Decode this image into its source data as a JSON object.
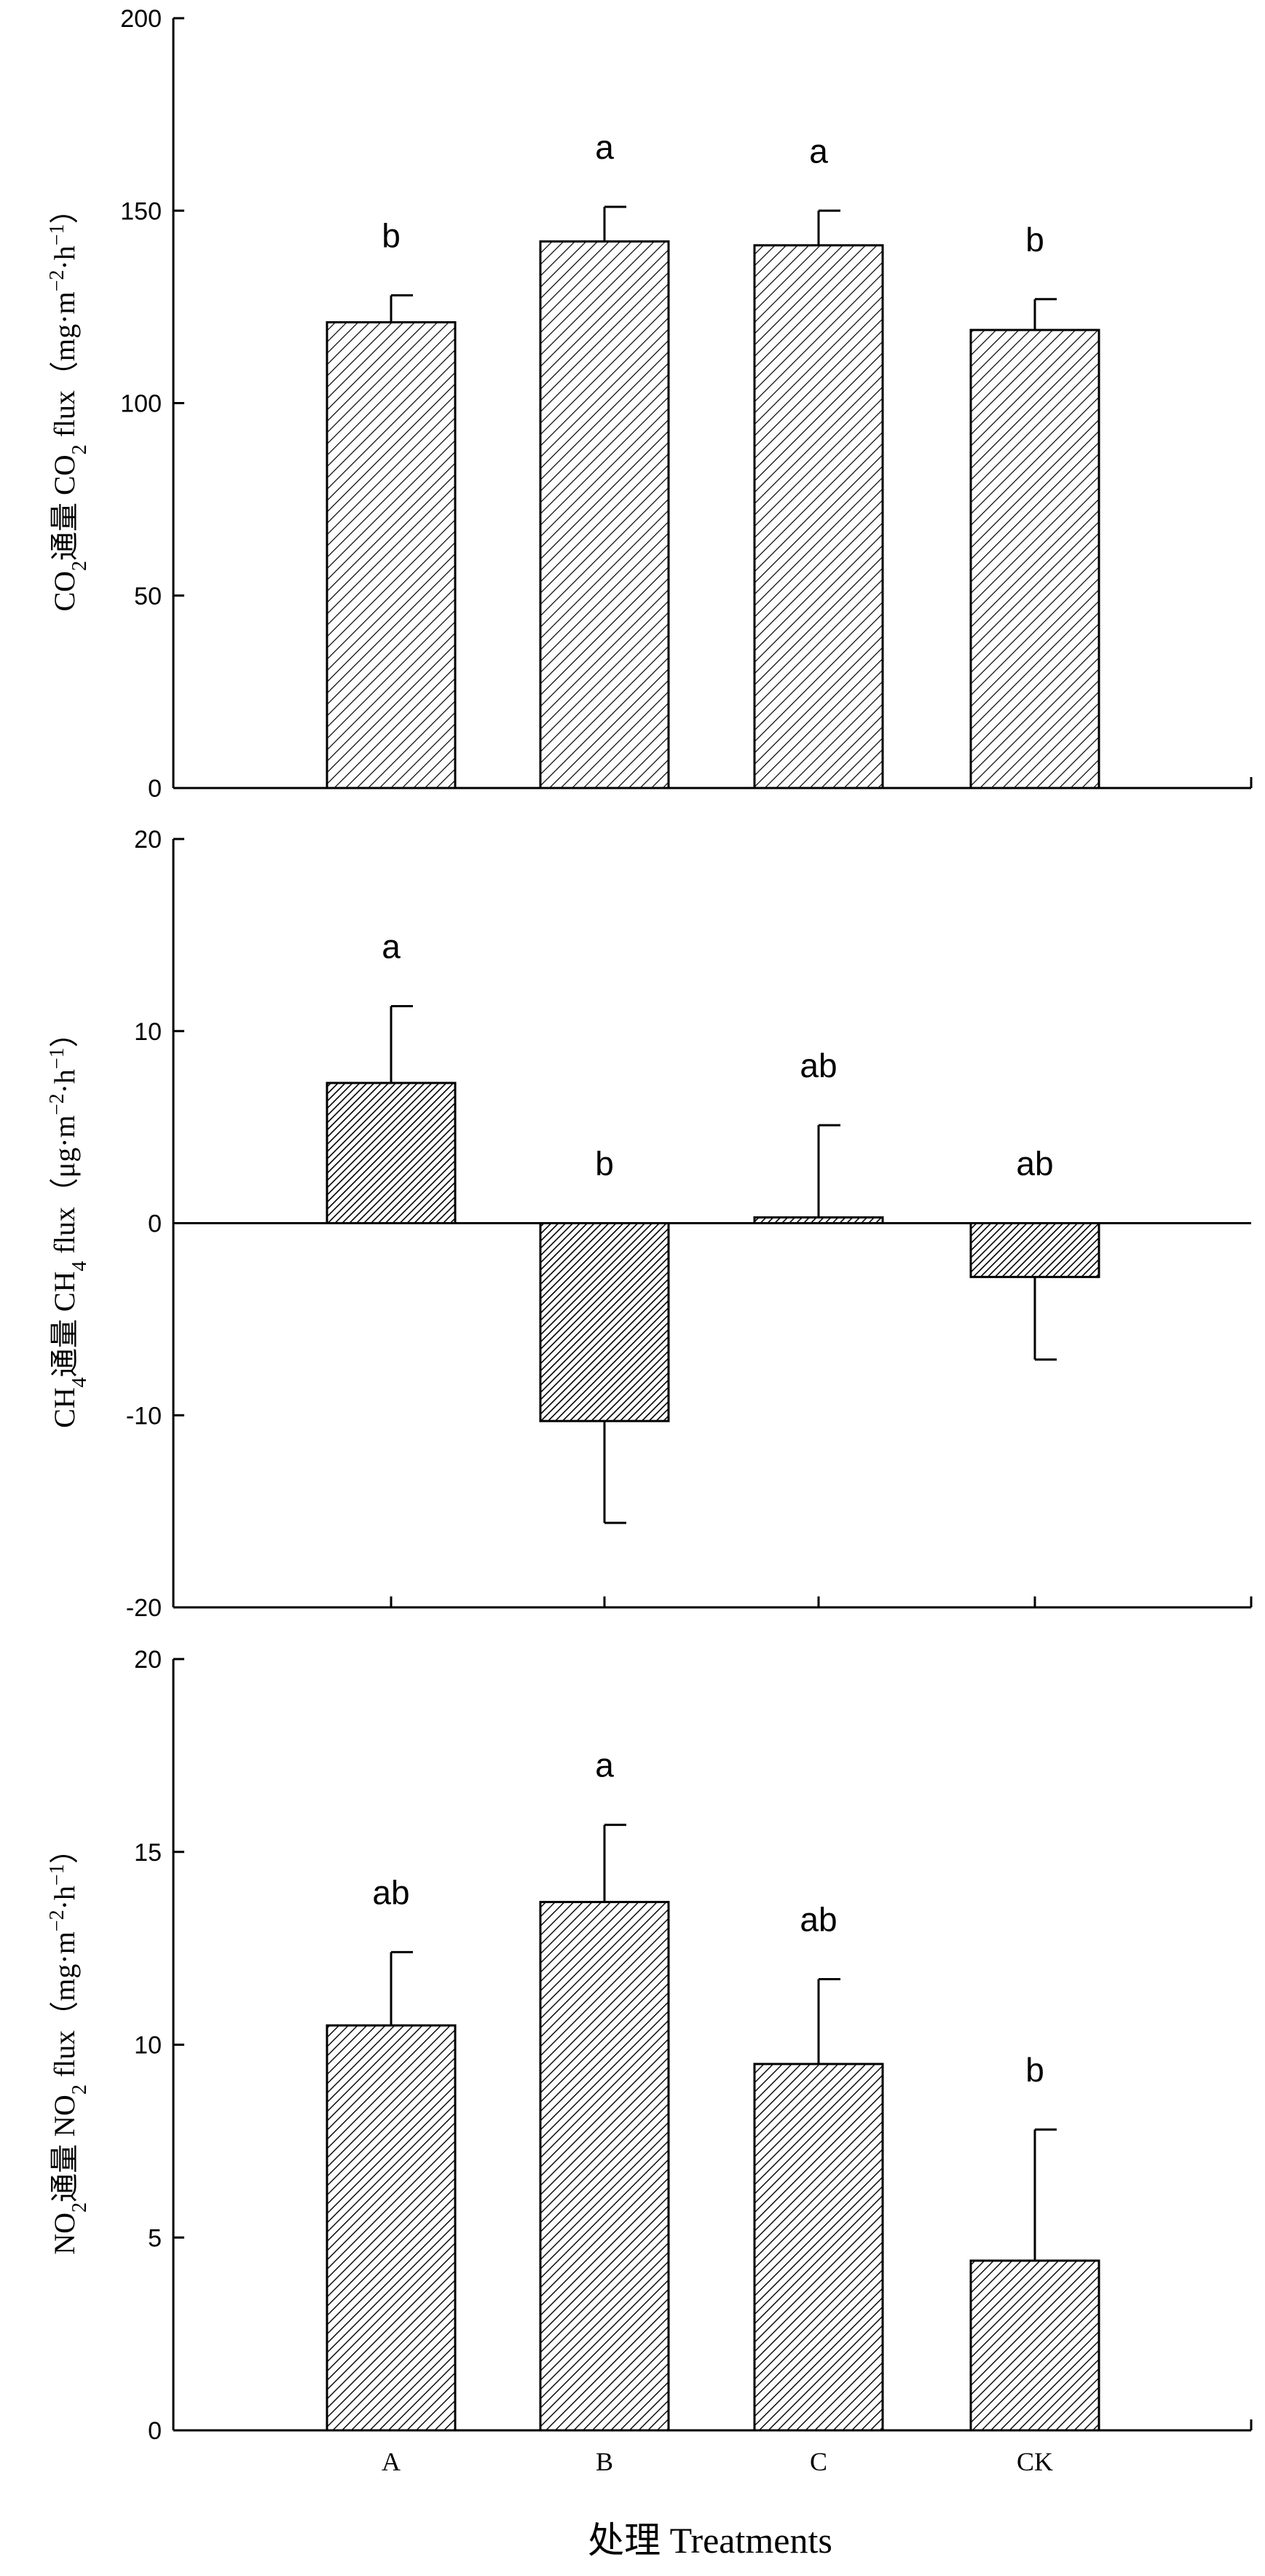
{
  "chart_data": [
    {
      "type": "bar",
      "categories": [
        "A",
        "B",
        "C",
        "CK"
      ],
      "values": [
        121,
        142,
        141,
        119
      ],
      "errors": [
        7,
        9,
        9,
        8
      ],
      "significance": [
        "b",
        "a",
        "a",
        "b"
      ],
      "ylabel": "CO₂ 通量 CO₂ flux (mg·m⁻²·h⁻¹)",
      "ylabel_parts": {
        "cn_a": "CO",
        "cn_sub": "2",
        "cn_b": "通量 CO",
        "en_sub": "2",
        "en_b": " flux（mg·m",
        "exp1": "−2",
        "mid": "·h",
        "exp2": "−1",
        "end": "）"
      },
      "ylim": [
        0,
        200
      ],
      "yticks": [
        0,
        50,
        100,
        150,
        200
      ],
      "ytick_labels": [
        "0",
        "50",
        "100",
        "150",
        "200"
      ],
      "pattern": "sparse-hatch"
    },
    {
      "type": "bar",
      "categories": [
        "A",
        "B",
        "C",
        "CK"
      ],
      "values": [
        7.3,
        -10.3,
        0.3,
        -2.8
      ],
      "errors": [
        4.0,
        5.3,
        4.8,
        4.3
      ],
      "significance": [
        "a",
        "b",
        "ab",
        "ab"
      ],
      "ylabel": "CH₄ 通量 CH₄ flux (μg·m⁻²·h⁻¹)",
      "ylabel_parts": {
        "cn_a": "CH",
        "cn_sub": "4",
        "cn_b": "通量 CH",
        "en_sub": "4",
        "en_b": " flux（μg·m",
        "exp1": "−2",
        "mid": "·h",
        "exp2": "−1",
        "end": "）"
      },
      "ylim": [
        -20,
        20
      ],
      "yticks": [
        -20,
        -10,
        0,
        10,
        20
      ],
      "ytick_labels": [
        "-20",
        "-10",
        "0",
        "10",
        "20"
      ],
      "pattern": "dense-hatch"
    },
    {
      "type": "bar",
      "categories": [
        "A",
        "B",
        "C",
        "CK"
      ],
      "values": [
        10.5,
        13.7,
        9.5,
        4.4
      ],
      "errors": [
        1.9,
        2.0,
        2.2,
        3.4
      ],
      "significance": [
        "ab",
        "a",
        "ab",
        "b"
      ],
      "ylabel": "NO₂ 通量 NO₂ flux (mg·m⁻²·h⁻¹)",
      "ylabel_parts": {
        "cn_a": "NO",
        "cn_sub": "2",
        "cn_b": "通量 NO",
        "en_sub": "2",
        "en_b": " flux（mg·m",
        "exp1": "−2",
        "mid": "·h",
        "exp2": "−1",
        "end": "）"
      },
      "ylim": [
        0,
        20
      ],
      "yticks": [
        0,
        5,
        10,
        15,
        20
      ],
      "ytick_labels": [
        "0",
        "5",
        "10",
        "15",
        "20"
      ],
      "pattern": "medium-hatch"
    }
  ],
  "xlabel": "处理 Treatments",
  "colors": {
    "stroke": "#000000",
    "fill": "#ffffff"
  }
}
